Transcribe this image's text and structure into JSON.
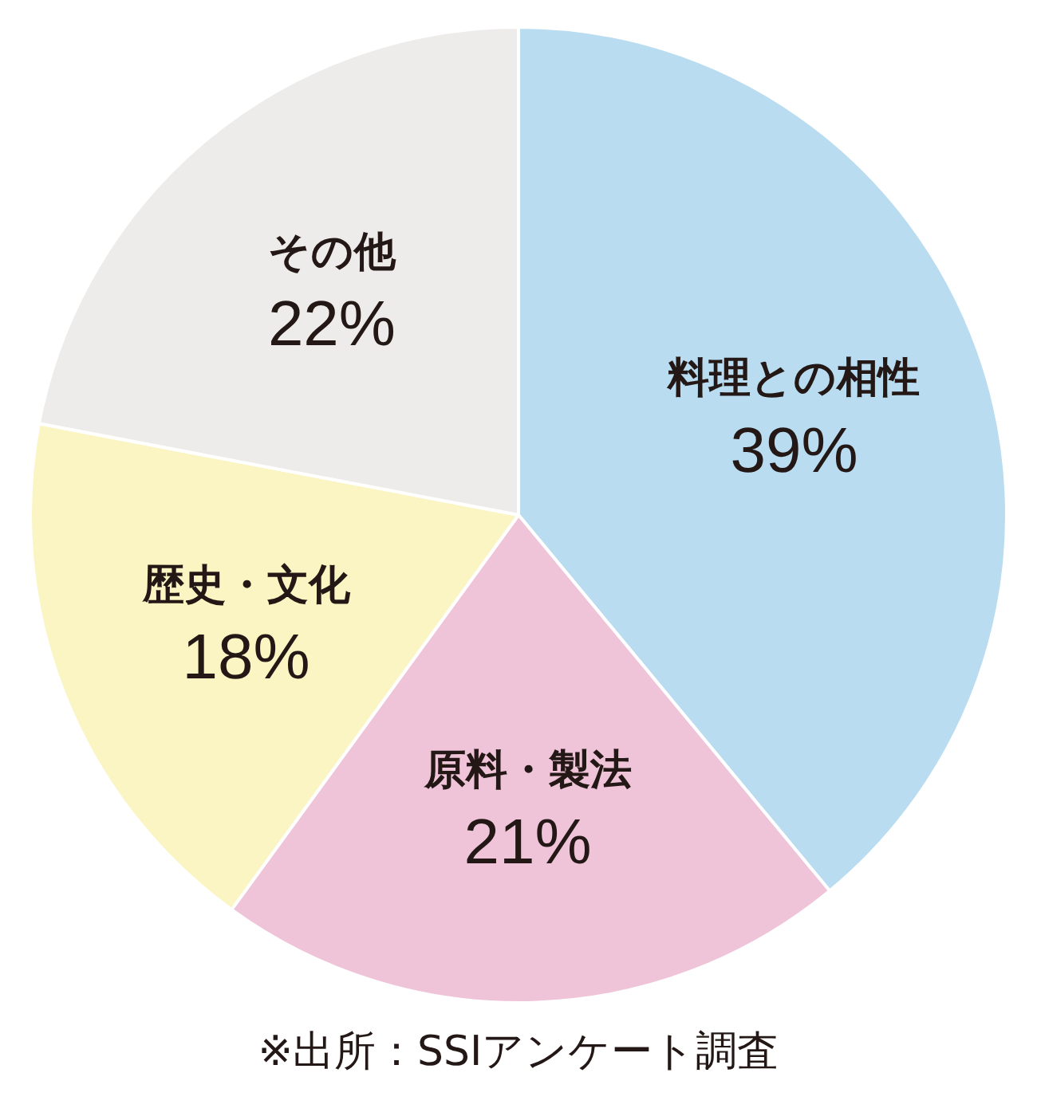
{
  "chart_data": {
    "type": "pie",
    "categories": [
      "料理との相性",
      "原料・製法",
      "歴史・文化",
      "その他"
    ],
    "values": [
      39,
      21,
      18,
      22
    ],
    "colors": [
      "#b9dcf0",
      "#efc4d8",
      "#faf5c3",
      "#eeeceb"
    ],
    "value_labels": [
      "39%",
      "21%",
      "18%",
      "22%"
    ],
    "annotations": [
      "※出所：SSIアンケート調査"
    ],
    "legend": false
  }
}
